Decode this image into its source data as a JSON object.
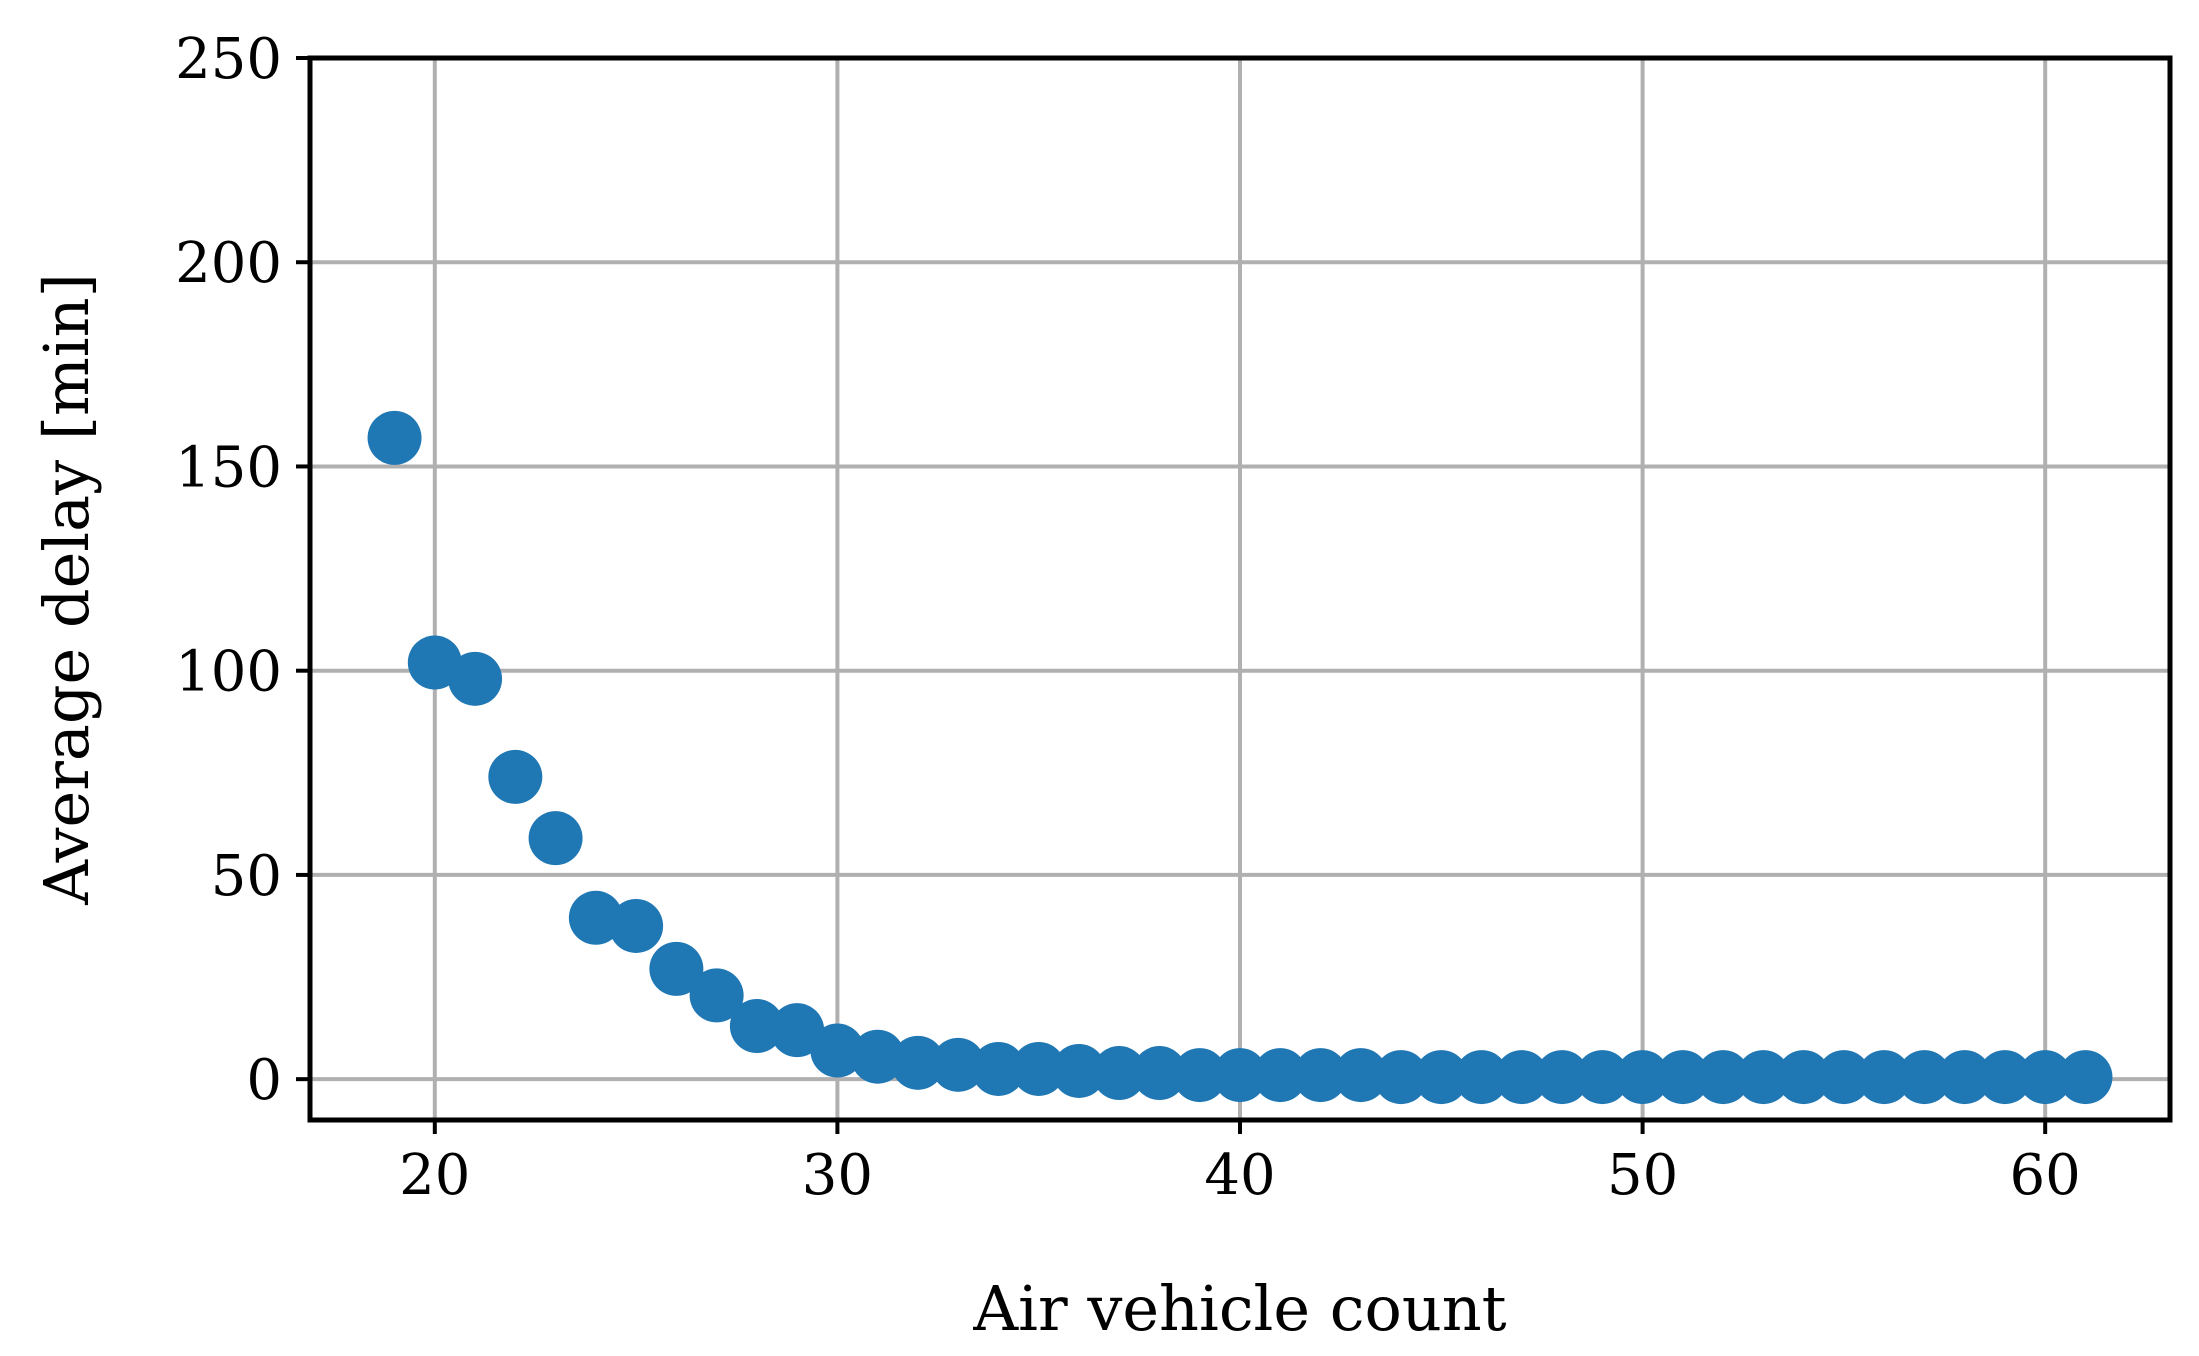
{
  "chart_data": {
    "type": "scatter",
    "title": "",
    "xlabel": "Air vehicle count",
    "ylabel": "Average delay [min]",
    "xlim": [
      16.9,
      63.1
    ],
    "ylim": [
      -10,
      250
    ],
    "xticks": [
      20,
      30,
      40,
      50,
      60
    ],
    "yticks": [
      0,
      50,
      100,
      150,
      200,
      250
    ],
    "grid": true,
    "marker_color": "#1f77b4",
    "series": [
      {
        "x": [
          19,
          20,
          21,
          22,
          23,
          24,
          25,
          26,
          27,
          28,
          29,
          30,
          31,
          32,
          33,
          34,
          35,
          36,
          37,
          38,
          39,
          40,
          41,
          42,
          43,
          44,
          45,
          46,
          47,
          48,
          49,
          50,
          51,
          52,
          53,
          54,
          55,
          56,
          57,
          58,
          59,
          60,
          61
        ],
        "y": [
          157,
          102,
          98,
          74,
          59,
          39.5,
          37.5,
          27,
          20.5,
          13,
          12,
          7,
          5.5,
          4,
          3.5,
          2.5,
          2.5,
          2,
          1.5,
          1.5,
          1,
          1,
          1,
          1,
          1,
          0.5,
          0.5,
          0.5,
          0.5,
          0.5,
          0.5,
          0.5,
          0.5,
          0.5,
          0.5,
          0.5,
          0.5,
          0.5,
          0.5,
          0.5,
          0.5,
          0.5,
          0.5
        ]
      }
    ]
  }
}
